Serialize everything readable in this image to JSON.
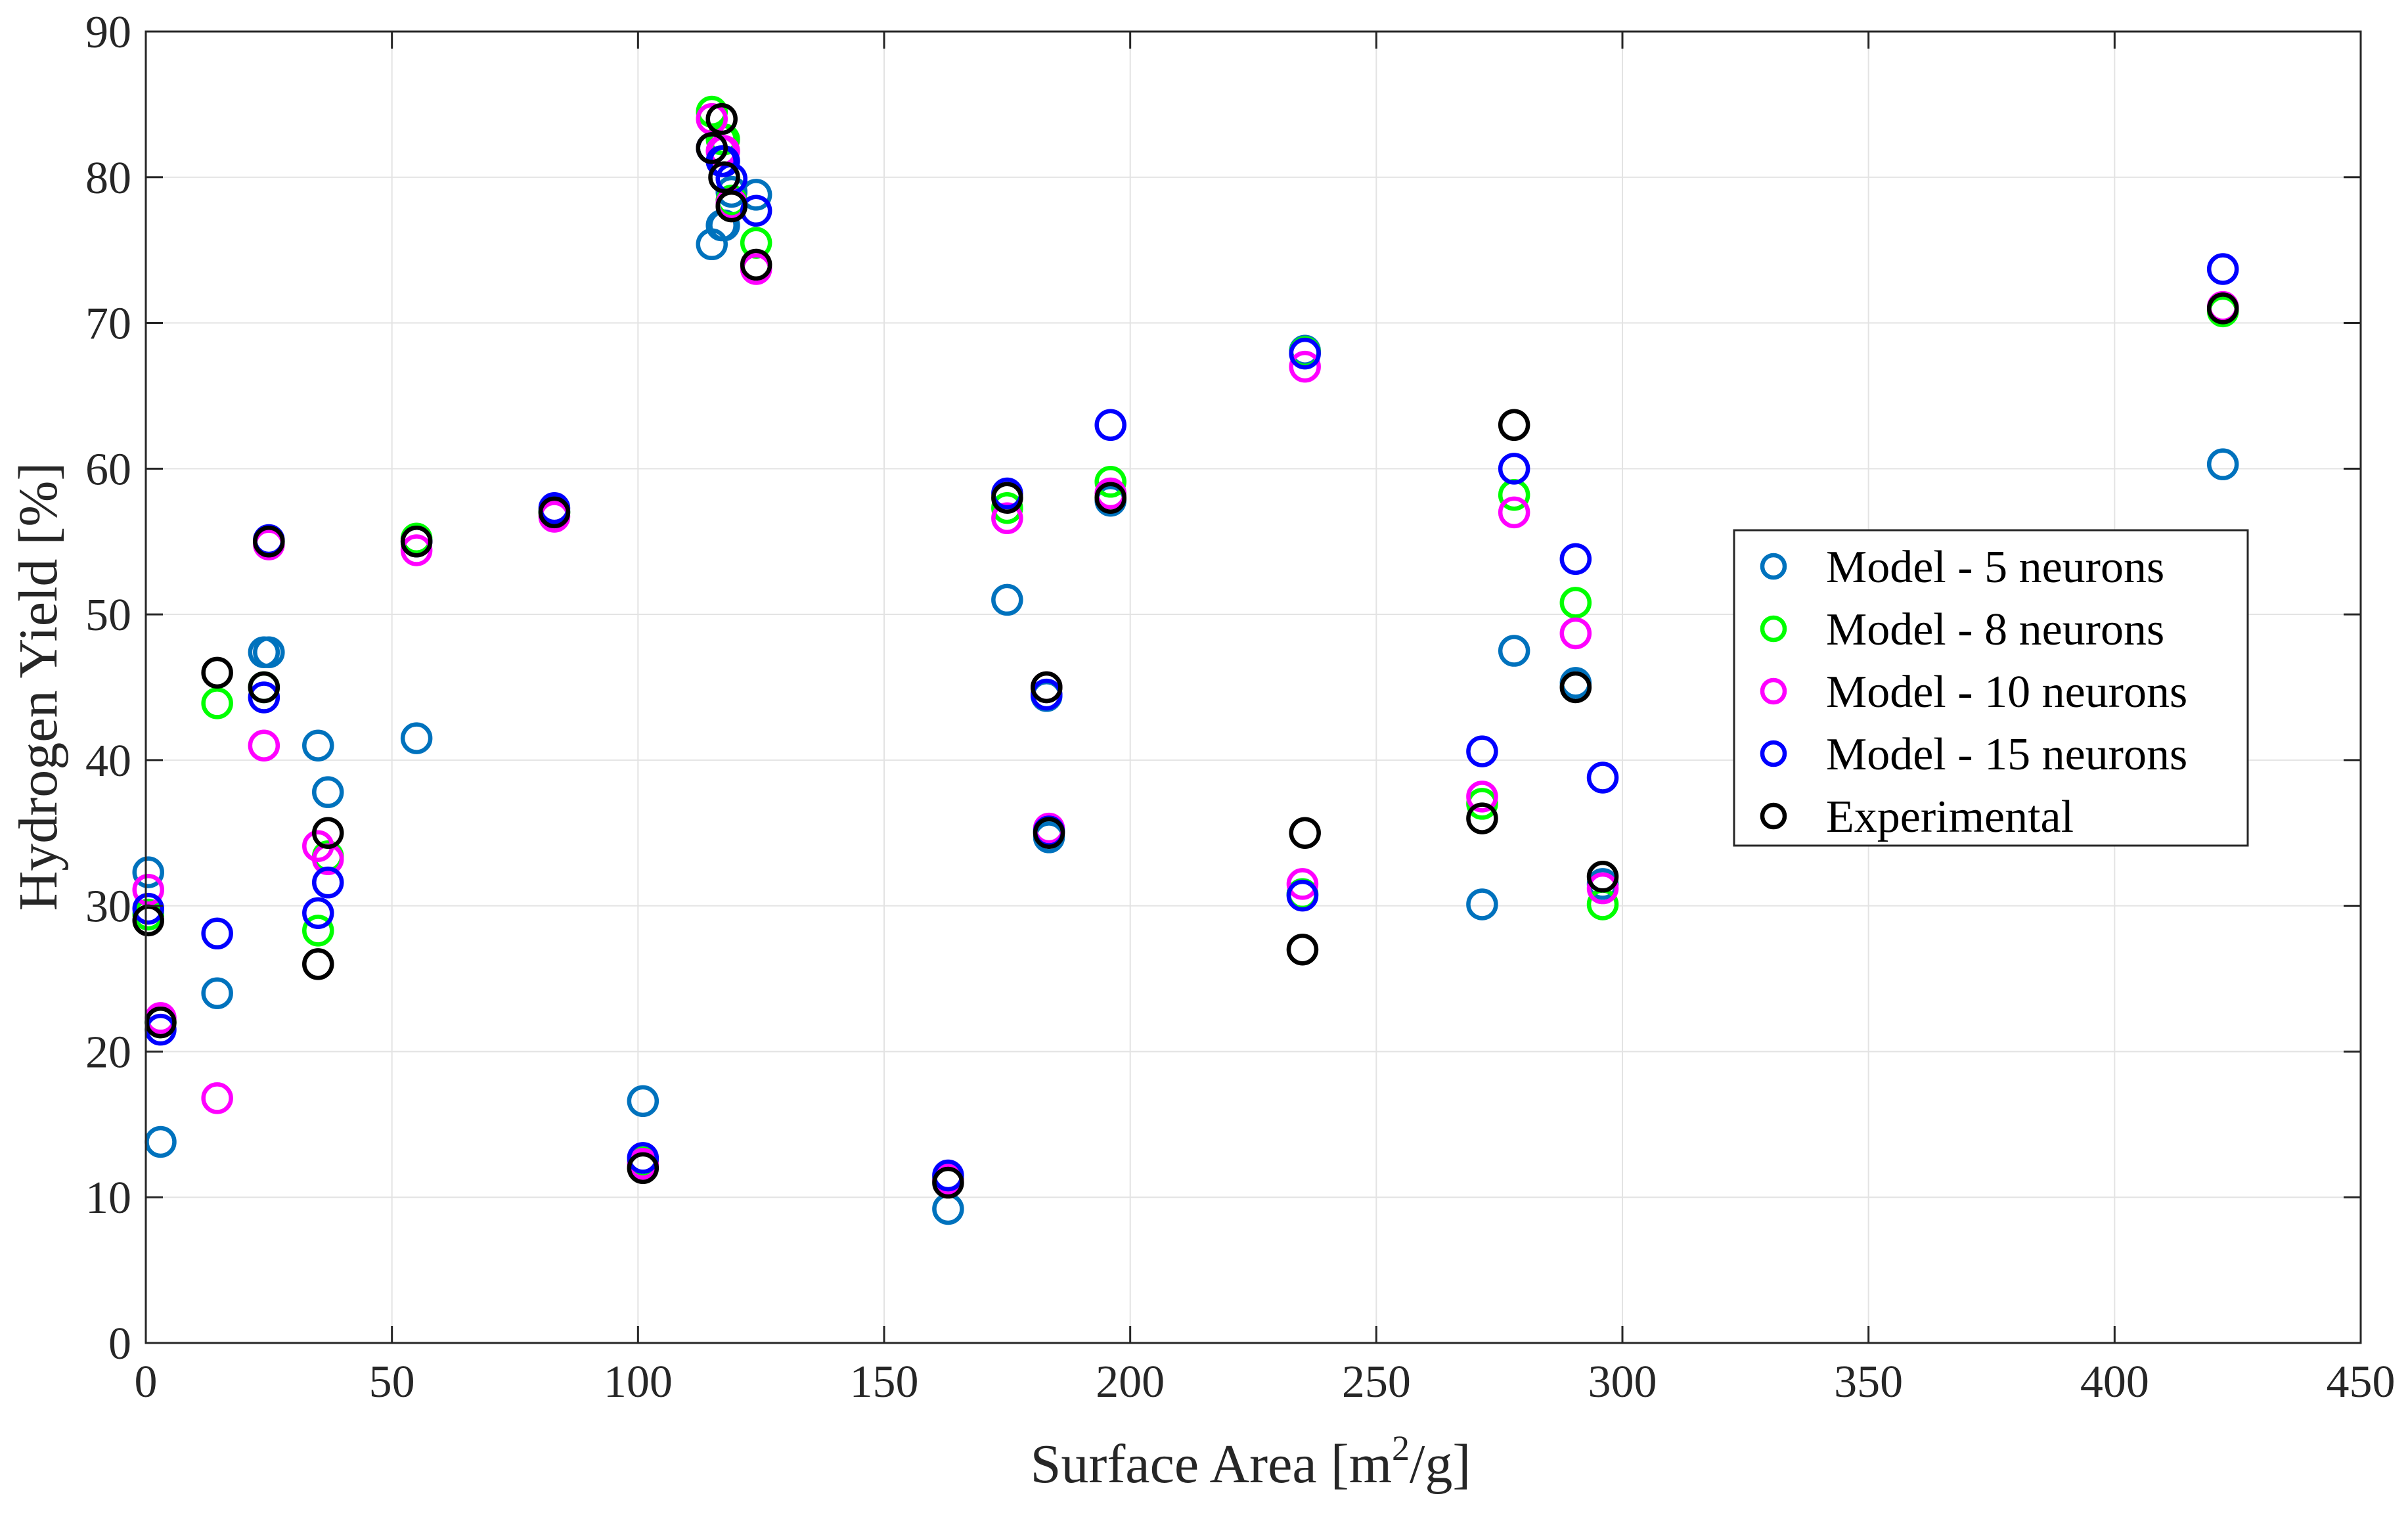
{
  "chart_data": {
    "type": "scatter",
    "title": "",
    "xlabel": "Surface Area [m",
    "xlabel_superscript": "2",
    "xlabel_suffix": "/g]",
    "ylabel": "Hydrogen Yield [%]",
    "xlim": [
      0,
      450
    ],
    "ylim": [
      0,
      90
    ],
    "xticks": [
      0,
      50,
      100,
      150,
      200,
      250,
      300,
      350,
      400,
      450
    ],
    "yticks": [
      0,
      10,
      20,
      30,
      40,
      50,
      60,
      70,
      80,
      90
    ],
    "grid": true,
    "legend_position": "right-center",
    "x": [
      0.5,
      3,
      14.5,
      24,
      25,
      35,
      37,
      55,
      83,
      101,
      115,
      117,
      117.5,
      119,
      124,
      163,
      175,
      183,
      183.5,
      196,
      235,
      235.5,
      271.5,
      278,
      290.5,
      296,
      422
    ],
    "series": [
      {
        "name": "Model - 5 neurons",
        "color": "#0072BD",
        "values": [
          32.3,
          13.8,
          24.0,
          47.4,
          47.4,
          41.0,
          37.8,
          41.5,
          57.1,
          16.6,
          75.4,
          76.7,
          76.7,
          79.0,
          78.8,
          9.2,
          51.0,
          44.4,
          34.7,
          57.8,
          30.8,
          68.1,
          30.1,
          47.5,
          45.3,
          31.5,
          60.3
        ]
      },
      {
        "name": "Model - 8 neurons",
        "color": "#00FF00",
        "values": [
          29.4,
          22.0,
          43.9,
          45.0,
          55.0,
          28.3,
          33.4,
          55.2,
          57.0,
          12.4,
          84.5,
          82.6,
          82.6,
          78.4,
          75.5,
          11.3,
          57.3,
          45.0,
          35.2,
          59.1,
          30.8,
          68.0,
          37.0,
          58.2,
          50.8,
          30.1,
          70.8
        ]
      },
      {
        "name": "Model - 10 neurons",
        "color": "#FF00FF",
        "values": [
          31.1,
          22.3,
          16.8,
          41.0,
          54.8,
          34.1,
          33.2,
          54.4,
          56.7,
          12.3,
          84.0,
          81.8,
          81.8,
          78.2,
          73.7,
          11.2,
          56.6,
          45.0,
          35.3,
          58.3,
          31.5,
          67.0,
          37.5,
          57.0,
          48.7,
          31.2,
          71.1
        ]
      },
      {
        "name": "Model - 15 neurons",
        "color": "#0000FF",
        "values": [
          29.8,
          21.5,
          28.1,
          44.3,
          55.1,
          29.5,
          31.6,
          55.0,
          57.3,
          12.7,
          82.0,
          81.1,
          81.1,
          79.9,
          77.7,
          11.5,
          58.3,
          44.5,
          35.1,
          63.0,
          30.7,
          67.9,
          40.6,
          60.0,
          53.8,
          38.8,
          73.7
        ]
      },
      {
        "name": "Experimental",
        "color": "#000000",
        "values": [
          29.0,
          22.0,
          46.0,
          45.0,
          55.0,
          26.0,
          35.0,
          55.0,
          57.0,
          12.0,
          82.0,
          84.0,
          80.0,
          78.0,
          74.0,
          11.0,
          58.0,
          45.0,
          35.0,
          58.0,
          27.0,
          35.0,
          36.0,
          63.0,
          45.0,
          32.0,
          71.0
        ]
      }
    ]
  }
}
